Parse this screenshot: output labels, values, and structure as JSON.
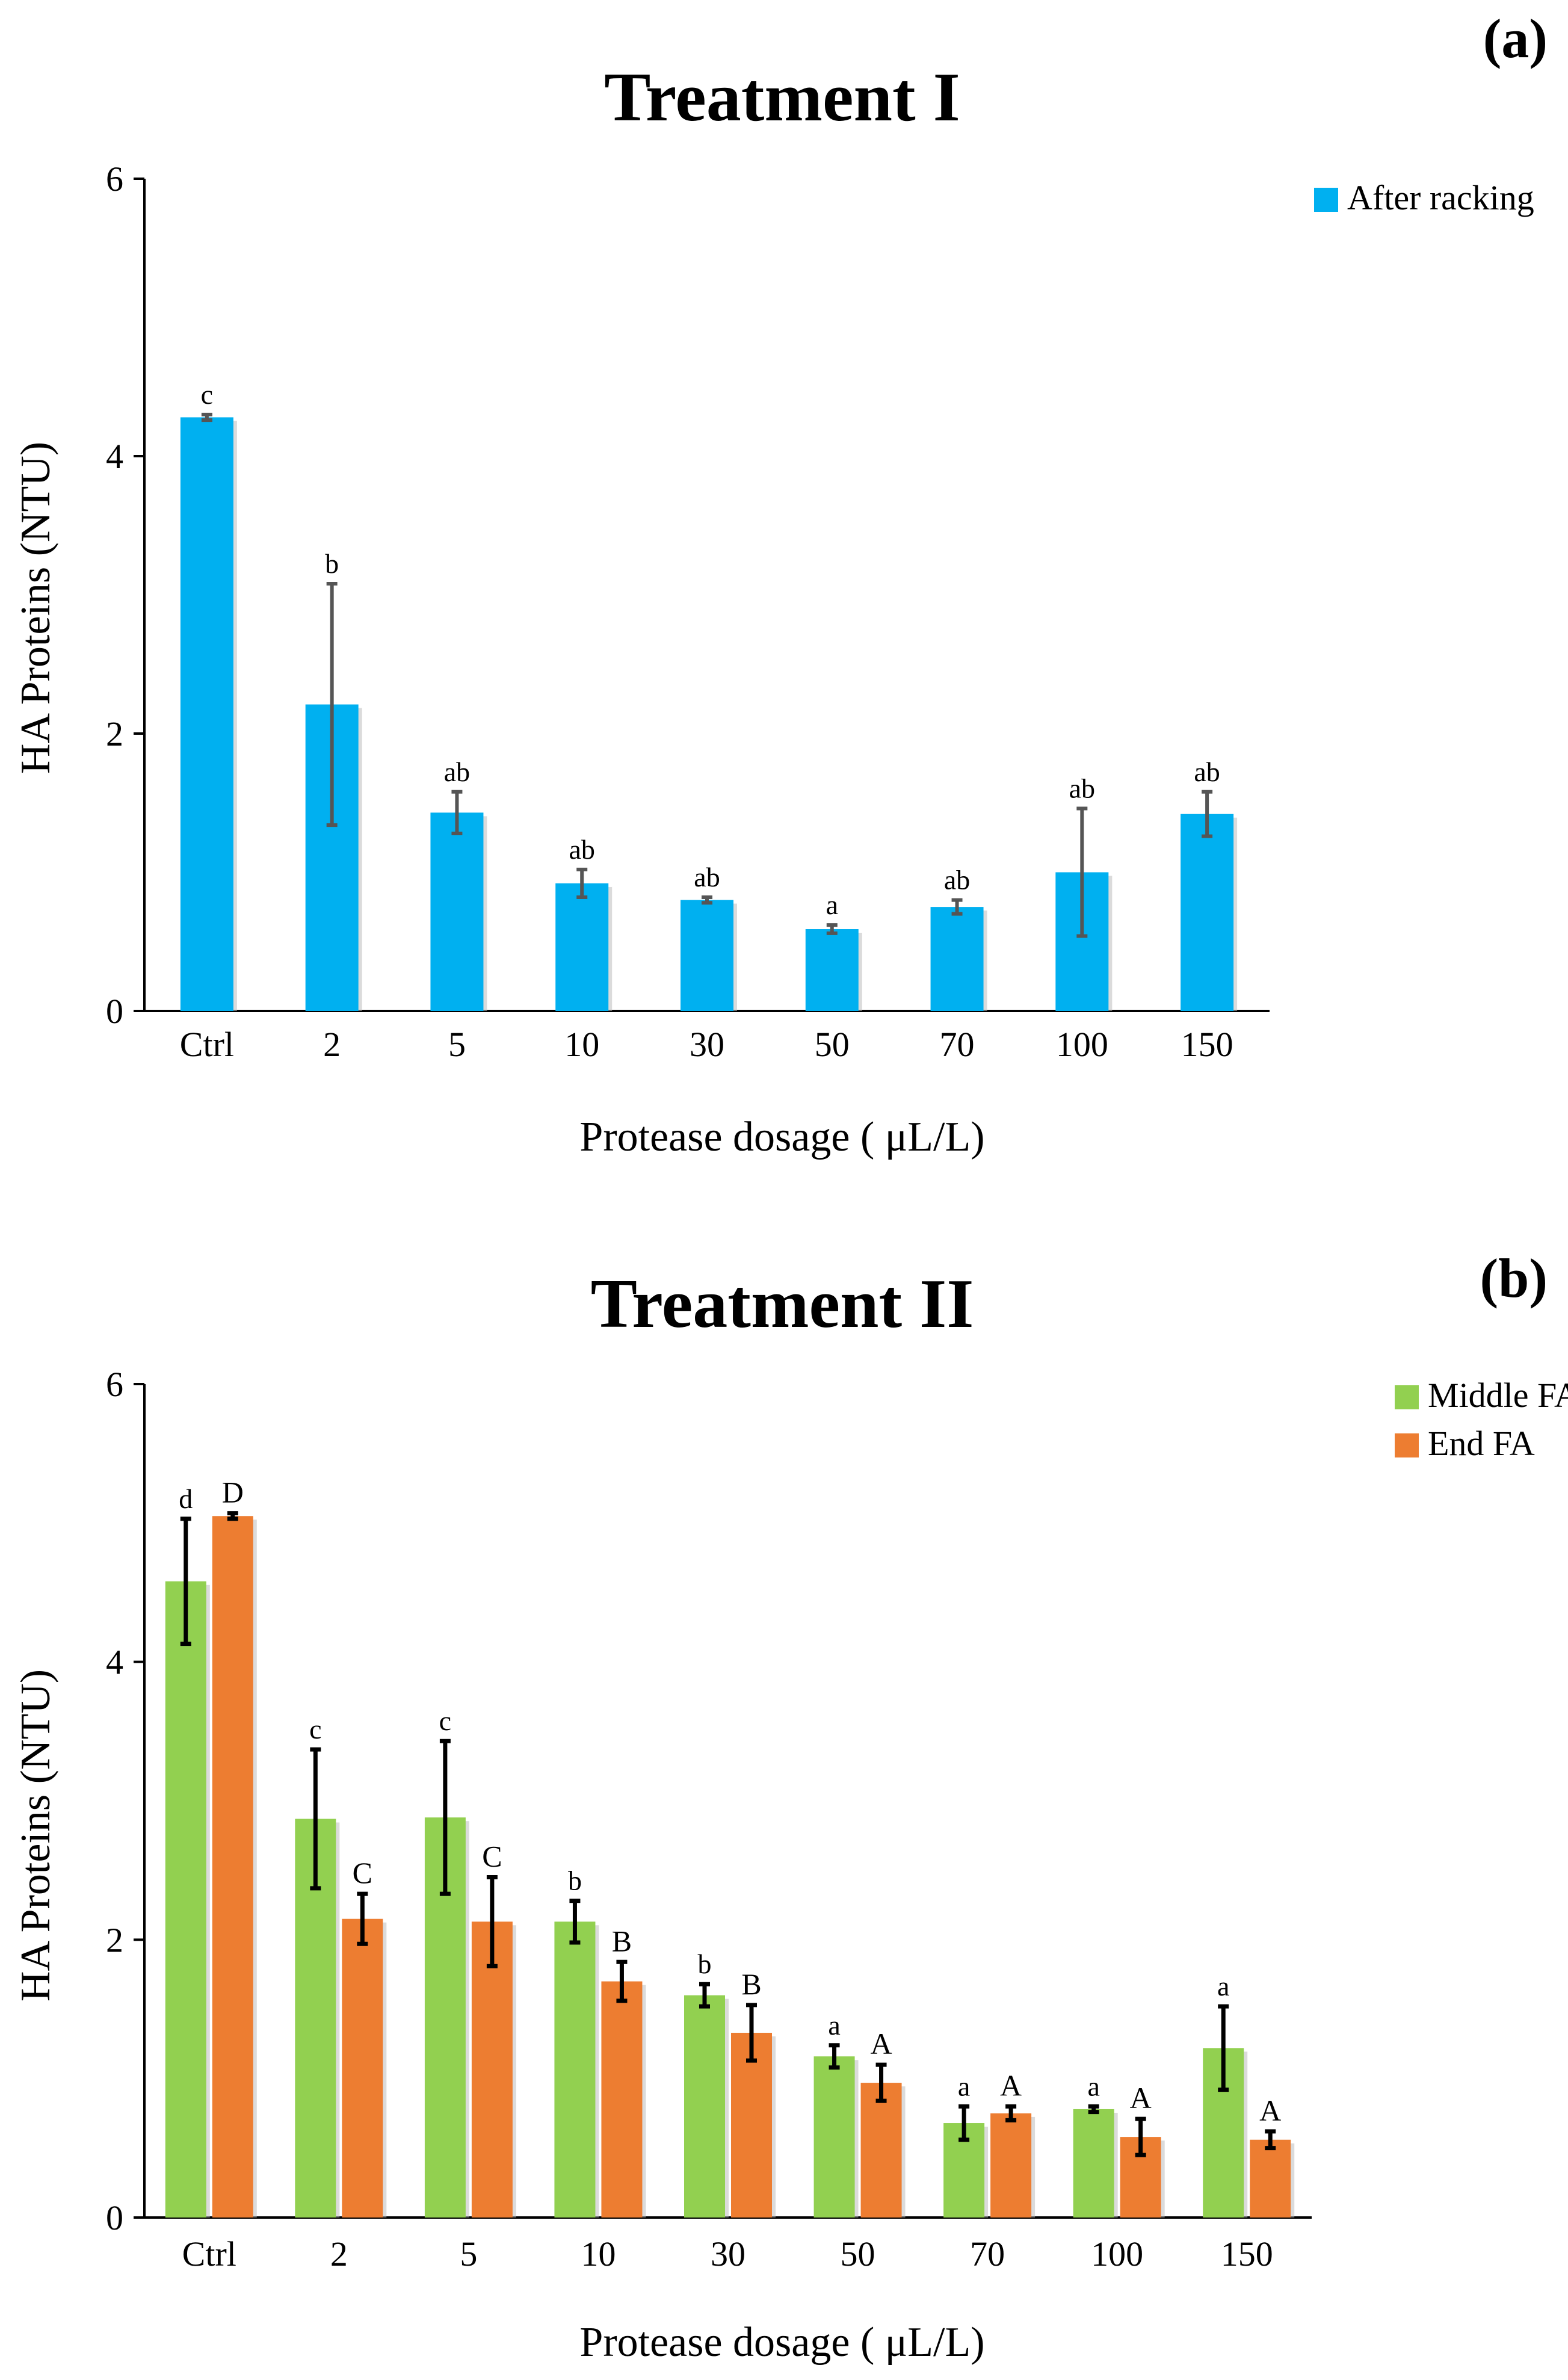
{
  "chart_data": [
    {
      "type": "bar",
      "panel_label": "(a)",
      "title": "Treatment I",
      "xlabel": "Protease dosage ( μL/L)",
      "ylabel": "HA Proteins (NTU)",
      "ylim": [
        0,
        6
      ],
      "yticks": [
        "0",
        "2",
        "4",
        "6"
      ],
      "categories": [
        "Ctrl",
        "2",
        "5",
        "10",
        "30",
        "50",
        "70",
        "100",
        "150"
      ],
      "legend_position": "top-right",
      "series": [
        {
          "name": "After racking",
          "color": "#00B0F0",
          "error_color": "#555555",
          "values": [
            4.28,
            2.21,
            1.43,
            0.92,
            0.8,
            0.59,
            0.75,
            1.0,
            1.42
          ],
          "errors": [
            0.02,
            0.87,
            0.15,
            0.1,
            0.02,
            0.03,
            0.05,
            0.46,
            0.16
          ],
          "labels": [
            "c",
            "b",
            "ab",
            "ab",
            "ab",
            "a",
            "ab",
            "ab",
            "ab"
          ]
        }
      ]
    },
    {
      "type": "bar",
      "panel_label": "(b)",
      "title": "Treatment II",
      "xlabel": "Protease dosage ( μL/L)",
      "ylabel": "HA Proteins (NTU)",
      "ylim": [
        0,
        6
      ],
      "yticks": [
        "0",
        "2",
        "4",
        "6"
      ],
      "categories": [
        "Ctrl",
        "2",
        "5",
        "10",
        "30",
        "50",
        "70",
        "100",
        "150"
      ],
      "legend_position": "top-right",
      "series": [
        {
          "name": "Middle FA",
          "color": "#92D050",
          "error_color": "#000000",
          "values": [
            4.58,
            2.87,
            2.88,
            2.13,
            1.6,
            1.16,
            0.68,
            0.78,
            1.22
          ],
          "errors": [
            0.45,
            0.5,
            0.55,
            0.15,
            0.08,
            0.08,
            0.12,
            0.02,
            0.3
          ],
          "labels": [
            "d",
            "c",
            "c",
            "b",
            "b",
            "a",
            "a",
            "a",
            "a"
          ]
        },
        {
          "name": "End FA",
          "color": "#ED7D31",
          "error_color": "#000000",
          "values": [
            5.05,
            2.15,
            2.13,
            1.7,
            1.33,
            0.97,
            0.75,
            0.58,
            0.56
          ],
          "errors": [
            0.02,
            0.18,
            0.32,
            0.14,
            0.2,
            0.13,
            0.05,
            0.13,
            0.06
          ],
          "labels": [
            "D",
            "C",
            "C",
            "B",
            "B",
            "A",
            "A",
            "A",
            "A"
          ]
        }
      ]
    }
  ]
}
